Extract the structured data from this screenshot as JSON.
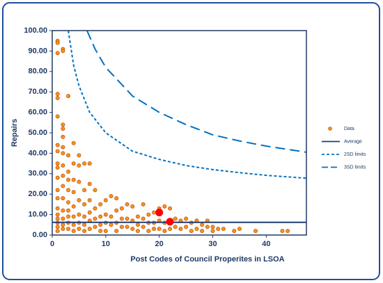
{
  "chart_data": {
    "type": "scatter",
    "x_label": "Post Codes of Council Properites in LSOA",
    "y_label": "Repairs",
    "xlim": [
      0,
      47.5
    ],
    "ylim": [
      0,
      100
    ],
    "xticks": [
      0,
      10,
      20,
      30,
      40
    ],
    "yticks": [
      {
        "value": 0,
        "label": "0.00"
      },
      {
        "value": 10,
        "label": "10.00"
      },
      {
        "value": 20,
        "label": "20.00"
      },
      {
        "value": 30,
        "label": "30.00"
      },
      {
        "value": 40,
        "label": "40.00"
      },
      {
        "value": 50,
        "label": "50.00"
      },
      {
        "value": 60,
        "label": "60.00"
      },
      {
        "value": 70,
        "label": "70.00"
      },
      {
        "value": 80,
        "label": "80.00"
      },
      {
        "value": 90,
        "label": "90.00"
      },
      {
        "value": 100,
        "label": "100.00"
      }
    ],
    "series": [
      {
        "name": "Data",
        "kind": "points",
        "color": "#f7931e",
        "stroke": "#c55a11",
        "x": [
          1,
          1,
          1,
          1,
          1,
          1,
          1,
          1,
          1,
          1,
          1,
          1,
          1,
          1,
          1,
          1,
          1,
          1,
          1,
          2,
          2,
          2,
          2,
          2,
          2,
          2,
          2,
          2,
          2,
          2,
          2,
          2,
          2,
          2,
          3,
          3,
          3,
          3,
          3,
          3,
          3,
          3,
          3,
          3,
          4,
          4,
          4,
          4,
          4,
          4,
          4,
          4,
          5,
          5,
          5,
          5,
          5,
          5,
          5,
          6,
          6,
          6,
          6,
          6,
          6,
          7,
          7,
          7,
          7,
          7,
          7,
          8,
          8,
          8,
          8,
          9,
          9,
          9,
          9,
          10,
          10,
          10,
          10,
          11,
          11,
          11,
          12,
          12,
          12,
          12,
          13,
          13,
          13,
          14,
          14,
          14,
          15,
          15,
          15,
          16,
          16,
          16,
          17,
          17,
          17,
          18,
          18,
          18,
          19,
          19,
          19,
          20,
          20,
          20,
          21,
          21,
          21,
          22,
          22,
          22,
          23,
          23,
          24,
          24,
          25,
          25,
          26,
          26,
          27,
          27,
          28,
          28,
          29,
          29,
          30,
          30,
          31,
          32,
          34,
          35,
          38,
          43,
          44
        ],
        "values": [
          95,
          94,
          89,
          69,
          67,
          58,
          44,
          41,
          35,
          33,
          28,
          22,
          18,
          13,
          10,
          8,
          6,
          4,
          2,
          91,
          90,
          54,
          52,
          48,
          43,
          40,
          34,
          29,
          24,
          18,
          12,
          8,
          5,
          3,
          68,
          39,
          31,
          27,
          22,
          16,
          12,
          9,
          6,
          3,
          45,
          35,
          27,
          21,
          14,
          9,
          5,
          2,
          39,
          34,
          26,
          17,
          10,
          6,
          3,
          35,
          22,
          15,
          9,
          5,
          2,
          35,
          25,
          17,
          11,
          7,
          3,
          22,
          13,
          8,
          4,
          15,
          9,
          5,
          2,
          17,
          10,
          6,
          2,
          19,
          9,
          5,
          18,
          12,
          6,
          2,
          13,
          8,
          4,
          15,
          8,
          4,
          14,
          7,
          3,
          9,
          5,
          2,
          15,
          8,
          4,
          10,
          6,
          2,
          11,
          6,
          3,
          13,
          7,
          3,
          14,
          6,
          2,
          13,
          6,
          3,
          8,
          4,
          7,
          3,
          8,
          4,
          6,
          2,
          7,
          3,
          5,
          2,
          7,
          4,
          4,
          2,
          3,
          3,
          2,
          3,
          2,
          2,
          2
        ]
      },
      {
        "name": "Average",
        "kind": "line",
        "style": "solid",
        "color": "#1f3b73",
        "x": [
          0,
          47.5
        ],
        "values": [
          6.2,
          6.2
        ]
      },
      {
        "name": "2SD limits",
        "kind": "line",
        "style": "short",
        "color": "#0070c0",
        "x": [
          3,
          4,
          5,
          7,
          10,
          15,
          20,
          25,
          30,
          35,
          40,
          47.5
        ],
        "values": [
          100,
          83,
          73,
          60,
          50,
          41,
          37,
          34,
          32,
          30.5,
          29.2,
          27.8
        ]
      },
      {
        "name": "3SD limits",
        "kind": "line",
        "style": "long",
        "color": "#0070c0",
        "x": [
          6.5,
          8,
          10,
          15,
          20,
          25,
          30,
          35,
          40,
          47.5
        ],
        "values": [
          100,
          91,
          82,
          68,
          60,
          54,
          49,
          46,
          43.5,
          40.5
        ]
      }
    ],
    "highlighted": {
      "color": "#ff0000",
      "x": [
        20,
        22
      ],
      "values": [
        11,
        6.5
      ]
    }
  }
}
